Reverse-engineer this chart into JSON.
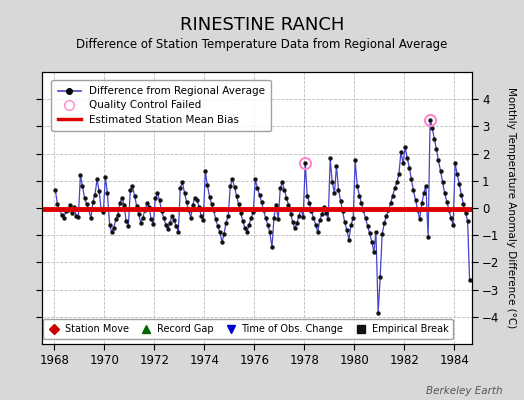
{
  "title": "RINESTINE RANCH",
  "subtitle": "Difference of Station Temperature Data from Regional Average",
  "ylabel": "Monthly Temperature Anomaly Difference (°C)",
  "xlim": [
    1967.5,
    1984.7
  ],
  "ylim": [
    -5,
    5
  ],
  "yticks": [
    -4,
    -3,
    -2,
    -1,
    0,
    1,
    2,
    3,
    4
  ],
  "xticks": [
    1968,
    1970,
    1972,
    1974,
    1976,
    1978,
    1980,
    1982,
    1984
  ],
  "bias_line_y": -0.05,
  "bias_color": "#dd0000",
  "line_color": "#4444cc",
  "marker_color": "#111111",
  "qc_failed_color": "#ff88cc",
  "plot_bg": "#ffffff",
  "fig_bg": "#d8d8d8",
  "watermark": "Berkeley Earth",
  "time_series": [
    [
      1968.04,
      0.65
    ],
    [
      1968.12,
      0.15
    ],
    [
      1968.21,
      -0.05
    ],
    [
      1968.29,
      -0.25
    ],
    [
      1968.37,
      -0.38
    ],
    [
      1968.46,
      -0.12
    ],
    [
      1968.54,
      -0.08
    ],
    [
      1968.62,
      0.1
    ],
    [
      1968.71,
      -0.18
    ],
    [
      1968.79,
      0.05
    ],
    [
      1968.87,
      -0.28
    ],
    [
      1968.96,
      -0.32
    ],
    [
      1969.04,
      1.2
    ],
    [
      1969.12,
      0.82
    ],
    [
      1969.21,
      0.35
    ],
    [
      1969.29,
      0.15
    ],
    [
      1969.37,
      -0.05
    ],
    [
      1969.46,
      -0.38
    ],
    [
      1969.54,
      0.22
    ],
    [
      1969.62,
      0.48
    ],
    [
      1969.71,
      1.05
    ],
    [
      1969.79,
      0.62
    ],
    [
      1969.87,
      -0.05
    ],
    [
      1969.96,
      -0.15
    ],
    [
      1970.04,
      1.15
    ],
    [
      1970.12,
      0.55
    ],
    [
      1970.21,
      -0.62
    ],
    [
      1970.29,
      -0.88
    ],
    [
      1970.37,
      -0.75
    ],
    [
      1970.46,
      -0.42
    ],
    [
      1970.54,
      -0.25
    ],
    [
      1970.62,
      0.18
    ],
    [
      1970.71,
      0.38
    ],
    [
      1970.79,
      0.12
    ],
    [
      1970.87,
      -0.48
    ],
    [
      1970.96,
      -0.65
    ],
    [
      1971.04,
      0.65
    ],
    [
      1971.12,
      0.82
    ],
    [
      1971.21,
      0.45
    ],
    [
      1971.29,
      0.08
    ],
    [
      1971.37,
      -0.22
    ],
    [
      1971.46,
      -0.55
    ],
    [
      1971.54,
      -0.35
    ],
    [
      1971.62,
      -0.08
    ],
    [
      1971.71,
      0.18
    ],
    [
      1971.79,
      0.05
    ],
    [
      1971.87,
      -0.42
    ],
    [
      1971.96,
      -0.58
    ],
    [
      1972.04,
      0.35
    ],
    [
      1972.12,
      0.55
    ],
    [
      1972.21,
      0.28
    ],
    [
      1972.29,
      -0.12
    ],
    [
      1972.37,
      -0.35
    ],
    [
      1972.46,
      -0.62
    ],
    [
      1972.54,
      -0.78
    ],
    [
      1972.62,
      -0.55
    ],
    [
      1972.71,
      -0.28
    ],
    [
      1972.79,
      -0.45
    ],
    [
      1972.87,
      -0.65
    ],
    [
      1972.96,
      -0.88
    ],
    [
      1973.04,
      0.75
    ],
    [
      1973.12,
      0.95
    ],
    [
      1973.21,
      0.55
    ],
    [
      1973.29,
      0.22
    ],
    [
      1973.37,
      -0.08
    ],
    [
      1973.46,
      -0.35
    ],
    [
      1973.54,
      0.12
    ],
    [
      1973.62,
      0.38
    ],
    [
      1973.71,
      0.28
    ],
    [
      1973.79,
      0.05
    ],
    [
      1973.87,
      -0.28
    ],
    [
      1973.96,
      -0.45
    ],
    [
      1974.04,
      1.35
    ],
    [
      1974.12,
      0.85
    ],
    [
      1974.21,
      0.42
    ],
    [
      1974.29,
      0.15
    ],
    [
      1974.37,
      -0.08
    ],
    [
      1974.46,
      -0.42
    ],
    [
      1974.54,
      -0.68
    ],
    [
      1974.62,
      -0.88
    ],
    [
      1974.71,
      -1.25
    ],
    [
      1974.79,
      -0.95
    ],
    [
      1974.87,
      -0.55
    ],
    [
      1974.96,
      -0.28
    ],
    [
      1975.04,
      0.82
    ],
    [
      1975.12,
      1.05
    ],
    [
      1975.21,
      0.78
    ],
    [
      1975.29,
      0.45
    ],
    [
      1975.37,
      0.15
    ],
    [
      1975.46,
      -0.18
    ],
    [
      1975.54,
      -0.48
    ],
    [
      1975.62,
      -0.72
    ],
    [
      1975.71,
      -0.88
    ],
    [
      1975.79,
      -0.62
    ],
    [
      1975.87,
      -0.38
    ],
    [
      1975.96,
      -0.15
    ],
    [
      1976.04,
      1.05
    ],
    [
      1976.12,
      0.75
    ],
    [
      1976.21,
      0.48
    ],
    [
      1976.29,
      0.22
    ],
    [
      1976.37,
      -0.08
    ],
    [
      1976.46,
      -0.38
    ],
    [
      1976.54,
      -0.62
    ],
    [
      1976.62,
      -0.88
    ],
    [
      1976.71,
      -1.45
    ],
    [
      1976.79,
      -0.35
    ],
    [
      1976.87,
      0.12
    ],
    [
      1976.96,
      -0.42
    ],
    [
      1977.04,
      0.72
    ],
    [
      1977.12,
      0.95
    ],
    [
      1977.21,
      0.65
    ],
    [
      1977.29,
      0.38
    ],
    [
      1977.37,
      0.12
    ],
    [
      1977.46,
      -0.22
    ],
    [
      1977.54,
      -0.52
    ],
    [
      1977.62,
      -0.75
    ],
    [
      1977.71,
      -0.55
    ],
    [
      1977.79,
      -0.28
    ],
    [
      1977.87,
      -0.05
    ],
    [
      1977.96,
      -0.32
    ],
    [
      1978.04,
      1.65
    ],
    [
      1978.12,
      0.45
    ],
    [
      1978.21,
      0.18
    ],
    [
      1978.29,
      -0.12
    ],
    [
      1978.37,
      -0.35
    ],
    [
      1978.46,
      -0.62
    ],
    [
      1978.54,
      -0.88
    ],
    [
      1978.62,
      -0.45
    ],
    [
      1978.71,
      -0.22
    ],
    [
      1978.79,
      0.05
    ],
    [
      1978.87,
      -0.18
    ],
    [
      1978.96,
      -0.42
    ],
    [
      1979.04,
      1.82
    ],
    [
      1979.12,
      0.95
    ],
    [
      1979.21,
      0.55
    ],
    [
      1979.29,
      1.55
    ],
    [
      1979.37,
      0.68
    ],
    [
      1979.46,
      0.25
    ],
    [
      1979.54,
      -0.12
    ],
    [
      1979.62,
      -0.52
    ],
    [
      1979.71,
      -0.82
    ],
    [
      1979.79,
      -1.18
    ],
    [
      1979.87,
      -0.62
    ],
    [
      1979.96,
      -0.38
    ],
    [
      1980.04,
      1.75
    ],
    [
      1980.12,
      0.82
    ],
    [
      1980.21,
      0.45
    ],
    [
      1980.29,
      0.18
    ],
    [
      1980.37,
      -0.08
    ],
    [
      1980.46,
      -0.38
    ],
    [
      1980.54,
      -0.65
    ],
    [
      1980.62,
      -0.92
    ],
    [
      1980.71,
      -1.25
    ],
    [
      1980.79,
      -1.62
    ],
    [
      1980.87,
      -0.88
    ],
    [
      1980.96,
      -3.85
    ],
    [
      1981.04,
      -2.55
    ],
    [
      1981.12,
      -0.95
    ],
    [
      1981.21,
      -0.55
    ],
    [
      1981.29,
      -0.28
    ],
    [
      1981.37,
      -0.08
    ],
    [
      1981.46,
      0.18
    ],
    [
      1981.54,
      0.45
    ],
    [
      1981.62,
      0.72
    ],
    [
      1981.71,
      0.95
    ],
    [
      1981.79,
      1.25
    ],
    [
      1981.87,
      2.05
    ],
    [
      1981.96,
      1.65
    ],
    [
      1982.04,
      2.25
    ],
    [
      1982.12,
      1.85
    ],
    [
      1982.21,
      1.48
    ],
    [
      1982.29,
      1.05
    ],
    [
      1982.37,
      0.65
    ],
    [
      1982.46,
      0.28
    ],
    [
      1982.54,
      -0.08
    ],
    [
      1982.62,
      -0.42
    ],
    [
      1982.71,
      0.18
    ],
    [
      1982.79,
      0.55
    ],
    [
      1982.87,
      0.82
    ],
    [
      1982.96,
      -1.05
    ],
    [
      1983.04,
      3.25
    ],
    [
      1983.12,
      2.95
    ],
    [
      1983.21,
      2.55
    ],
    [
      1983.29,
      2.18
    ],
    [
      1983.37,
      1.75
    ],
    [
      1983.46,
      1.35
    ],
    [
      1983.54,
      0.95
    ],
    [
      1983.62,
      0.55
    ],
    [
      1983.71,
      0.22
    ],
    [
      1983.79,
      -0.08
    ],
    [
      1983.87,
      -0.35
    ],
    [
      1983.96,
      -0.62
    ],
    [
      1984.04,
      1.65
    ],
    [
      1984.12,
      1.25
    ],
    [
      1984.21,
      0.88
    ],
    [
      1984.29,
      0.48
    ],
    [
      1984.37,
      0.15
    ],
    [
      1984.46,
      -0.18
    ],
    [
      1984.54,
      -0.48
    ],
    [
      1984.62,
      -2.65
    ]
  ],
  "qc_failed_points": [
    [
      1978.04,
      1.65
    ],
    [
      1983.04,
      3.25
    ]
  ],
  "bottom_legend": [
    {
      "label": "Station Move",
      "color": "#cc0000",
      "marker": "D"
    },
    {
      "label": "Record Gap",
      "color": "#006600",
      "marker": "^"
    },
    {
      "label": "Time of Obs. Change",
      "color": "#0000cc",
      "marker": "v"
    },
    {
      "label": "Empirical Break",
      "color": "#111111",
      "marker": "s"
    }
  ]
}
